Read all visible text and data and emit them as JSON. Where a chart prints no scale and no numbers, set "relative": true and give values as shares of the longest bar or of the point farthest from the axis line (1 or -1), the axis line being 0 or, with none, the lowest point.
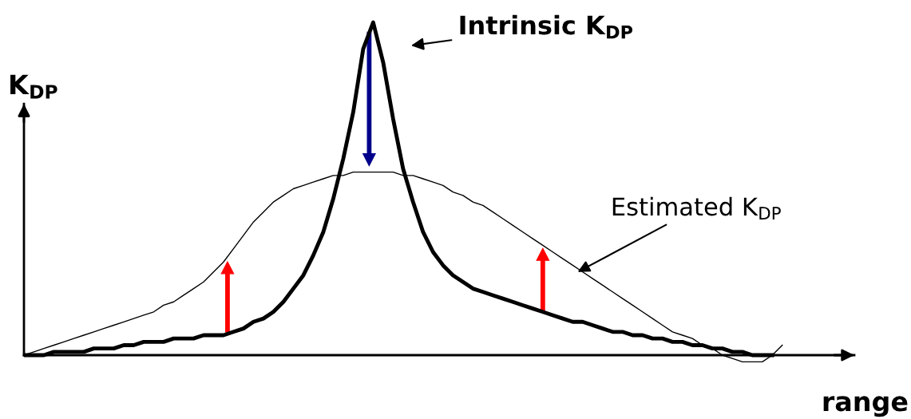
{
  "chart_data": {
    "type": "line",
    "relative": true,
    "marker": "none",
    "line_style": "solid",
    "xlabel": "range",
    "ylabel": "K$_{DP}$",
    "categories": [
      null,
      null,
      null,
      null,
      null,
      null,
      null,
      null,
      null,
      null,
      null,
      null,
      null,
      null,
      null,
      null,
      null,
      null,
      null,
      null,
      null,
      null,
      null,
      null,
      null,
      null,
      null,
      null,
      null,
      null,
      null,
      null,
      null,
      null,
      null,
      null,
      null,
      null,
      null,
      null,
      null,
      null,
      null,
      null,
      null,
      null,
      null,
      null,
      null,
      null,
      null,
      null,
      null,
      null,
      null,
      null,
      null,
      null,
      null,
      null,
      null,
      null,
      null,
      null,
      null,
      null,
      null,
      null,
      null,
      null,
      null,
      null,
      null,
      null,
      null,
      null,
      null
    ],
    "series": [
      {
        "name": "Intrinsic K$_{DP}$",
        "color": "#000000",
        "values": [
          0,
          0.0,
          0.0,
          0.01,
          0.01,
          0.01,
          0.01,
          0.02,
          0.02,
          0.02,
          0.03,
          0.03,
          0.04,
          0.04,
          0.04,
          0.05,
          0.05,
          0.05,
          0.06,
          0.06,
          0.06,
          0.07,
          0.08,
          0.1,
          0.11,
          0.13,
          0.16,
          0.2,
          0.24,
          0.3,
          0.37,
          0.47,
          0.59,
          0.73,
          0.92,
          1,
          0.88,
          0.71,
          0.56,
          0.46,
          0.37,
          0.31,
          0.27,
          0.24,
          0.22,
          0.2,
          0.19,
          0.18,
          0.17,
          0.16,
          0.15,
          0.14,
          0.13,
          0.12,
          0.11,
          0.1,
          0.1,
          0.09,
          0.08,
          0.07,
          0.07,
          0.06,
          0.06,
          0.05,
          0.05,
          0.04,
          0.04,
          0.03,
          0.03,
          0.02,
          0.02,
          0.01,
          0.01,
          0.0,
          0.0,
          0,
          null
        ]
      },
      {
        "name": "Estimated K$_{DP}$",
        "color": "#000000",
        "values": [
          0,
          0.01,
          0.02,
          0.03,
          0.04,
          0.05,
          0.06,
          0.07,
          0.08,
          0.09,
          0.1,
          0.11,
          0.12,
          0.13,
          0.15,
          0.16,
          0.18,
          0.2,
          0.22,
          0.25,
          0.28,
          0.32,
          0.36,
          0.4,
          0.43,
          0.46,
          0.48,
          0.5,
          0.51,
          0.52,
          0.53,
          0.54,
          0.54,
          0.55,
          0.55,
          0.55,
          0.55,
          0.55,
          0.54,
          0.54,
          0.53,
          0.52,
          0.51,
          0.49,
          0.48,
          0.46,
          0.45,
          0.43,
          0.41,
          0.39,
          0.37,
          0.35,
          0.33,
          0.31,
          0.29,
          0.27,
          0.25,
          0.23,
          0.21,
          0.19,
          0.17,
          0.15,
          0.13,
          0.11,
          0.09,
          0.07,
          0.06,
          0.05,
          0.03,
          0.02,
          0.0,
          -0.01,
          -0.02,
          -0.02,
          -0.02,
          0.0,
          0.03
        ]
      }
    ]
  }
}
